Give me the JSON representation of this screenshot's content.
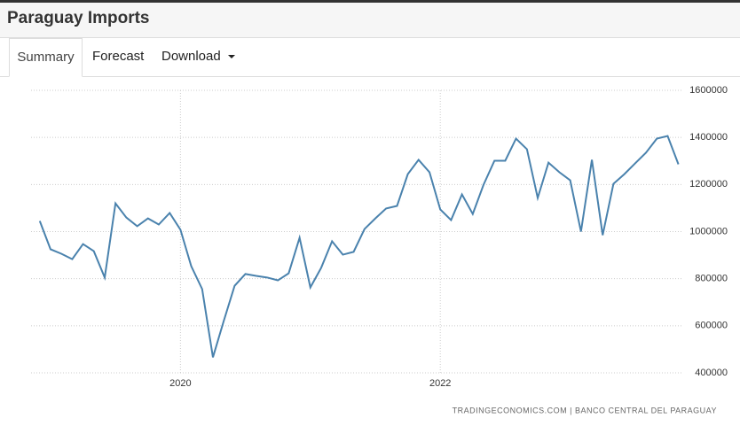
{
  "header": {
    "title": "Paraguay Imports"
  },
  "tabs": [
    "Summary",
    "Forecast",
    "Download"
  ],
  "chart_data": {
    "type": "line",
    "x": [
      2018.917,
      2019.0,
      2019.083,
      2019.167,
      2019.25,
      2019.333,
      2019.417,
      2019.5,
      2019.583,
      2019.667,
      2019.75,
      2019.833,
      2019.917,
      2020.0,
      2020.083,
      2020.167,
      2020.25,
      2020.333,
      2020.417,
      2020.5,
      2020.583,
      2020.667,
      2020.75,
      2020.833,
      2020.917,
      2021.0,
      2021.083,
      2021.167,
      2021.25,
      2021.333,
      2021.417,
      2021.5,
      2021.583,
      2021.667,
      2021.75,
      2021.833,
      2021.917,
      2022.0,
      2022.083,
      2022.167,
      2022.25,
      2022.333,
      2022.417,
      2022.5,
      2022.583,
      2022.667,
      2022.75,
      2022.833,
      2022.917,
      2023.0,
      2023.083,
      2023.167,
      2023.25,
      2023.333,
      2023.417,
      2023.5,
      2023.583,
      2023.667,
      2023.75,
      2023.833
    ],
    "series": [
      {
        "name": "Imports",
        "color": "#4a82ad",
        "values": [
          1045000,
          925000,
          906000,
          883000,
          947000,
          917000,
          805000,
          1120000,
          1060000,
          1023000,
          1056000,
          1030000,
          1079000,
          1008000,
          853000,
          756000,
          466000,
          620000,
          770000,
          820000,
          812000,
          805000,
          793000,
          823000,
          974000,
          763000,
          846000,
          959000,
          902000,
          914000,
          1011000,
          1056000,
          1098000,
          1109000,
          1244000,
          1305000,
          1252000,
          1094000,
          1049000,
          1158000,
          1075000,
          1199000,
          1301000,
          1301000,
          1395000,
          1350000,
          1143000,
          1293000,
          1252000,
          1218000,
          1000000,
          1305000,
          985000,
          1203000,
          1244000,
          1290000,
          1335000,
          1395000,
          1406000,
          1286000
        ]
      }
    ],
    "xlim": [
      2018.85,
      2023.87
    ],
    "xticks": [
      2020,
      2022
    ],
    "ylim": [
      400000,
      1600000
    ],
    "yticks": [
      400000,
      600000,
      800000,
      1000000,
      1200000,
      1400000,
      1600000
    ],
    "grid": true,
    "source": "TRADINGECONOMICS.COM | BANCO CENTRAL DEL PARAGUAY"
  }
}
